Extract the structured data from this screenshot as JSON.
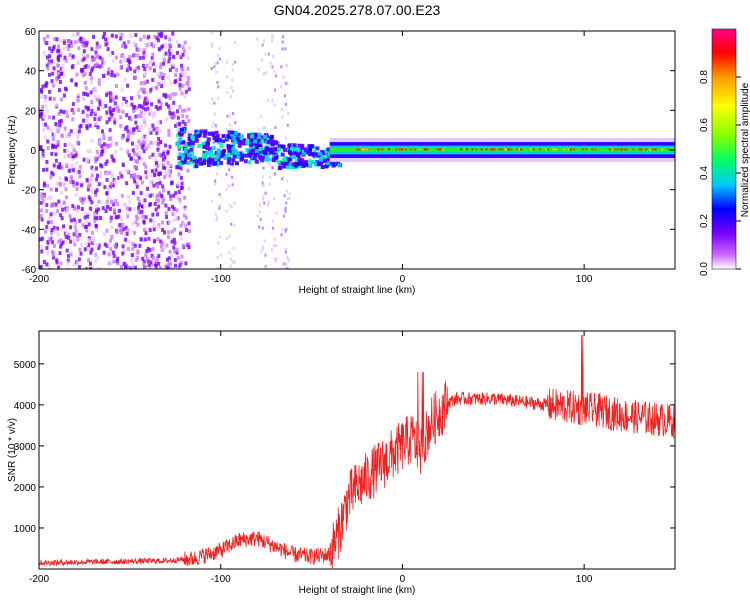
{
  "title": "GN04.2025.278.07.00.E23",
  "chart_data": [
    {
      "type": "heatmap",
      "name": "spectrogram",
      "xlabel": "Height of straight line (km)",
      "ylabel": "Frequency (Hz)",
      "xlim": [
        -200,
        150
      ],
      "ylim": [
        -60,
        60
      ],
      "xticks": [
        -200,
        -100,
        0,
        100
      ],
      "yticks": [
        -60,
        -40,
        -20,
        0,
        20,
        40,
        60
      ],
      "colorbar": {
        "label": "Normalized spectral amplitude",
        "range": [
          0.0,
          1.0
        ],
        "ticks": [
          "0.0",
          "0.2",
          "0.4",
          "0.6",
          "0.8"
        ],
        "tick_values": [
          0.0,
          0.2,
          0.4,
          0.6,
          0.8
        ],
        "colors": [
          "#ffffff",
          "#cc66ff",
          "#7700ff",
          "#0000ff",
          "#00c8ff",
          "#00ff66",
          "#80ff00",
          "#ffff00",
          "#ff9900",
          "#ff0000",
          "#ff0088"
        ]
      },
      "description_regions": [
        {
          "x": [
            -200,
            -120
          ],
          "f": [
            -60,
            60
          ],
          "level": 0.15
        },
        {
          "x": [
            -120,
            -40
          ],
          "f": [
            -12,
            12
          ],
          "level": 0.3
        },
        {
          "x": [
            -40,
            150
          ],
          "f": [
            -3,
            3
          ],
          "level": 0.5
        }
      ]
    },
    {
      "type": "line",
      "name": "snr",
      "xlabel": "Height of straight line (km)",
      "ylabel": "SNR (10 * v/v)",
      "xlim": [
        -200,
        150
      ],
      "ylim": [
        0,
        5800
      ],
      "xticks": [
        -200,
        -100,
        0,
        100
      ],
      "yticks": [
        1000,
        2000,
        3000,
        4000,
        5000
      ],
      "color": "#ee2222",
      "series": [
        {
          "name": "SNR",
          "envelope": {
            "x": [
              -200,
              -130,
              -115,
              -100,
              -90,
              -80,
              -70,
              -60,
              -50,
              -40,
              -35,
              -30,
              -25,
              -20,
              -15,
              -10,
              -5,
              0,
              5,
              10,
              15,
              20,
              25,
              30,
              40,
              50,
              60,
              70,
              80,
              90,
              100,
              110,
              120,
              130,
              140,
              150
            ],
            "y": [
              150,
              200,
              250,
              450,
              700,
              750,
              550,
              350,
              300,
              350,
              900,
              1700,
              2000,
              2200,
              2400,
              2600,
              2800,
              3000,
              3200,
              2900,
              3500,
              3800,
              4050,
              4150,
              4150,
              4150,
              4100,
              4050,
              4000,
              3950,
              3900,
              3850,
              3750,
              3700,
              3650,
              3600
            ]
          }
        }
      ]
    }
  ]
}
